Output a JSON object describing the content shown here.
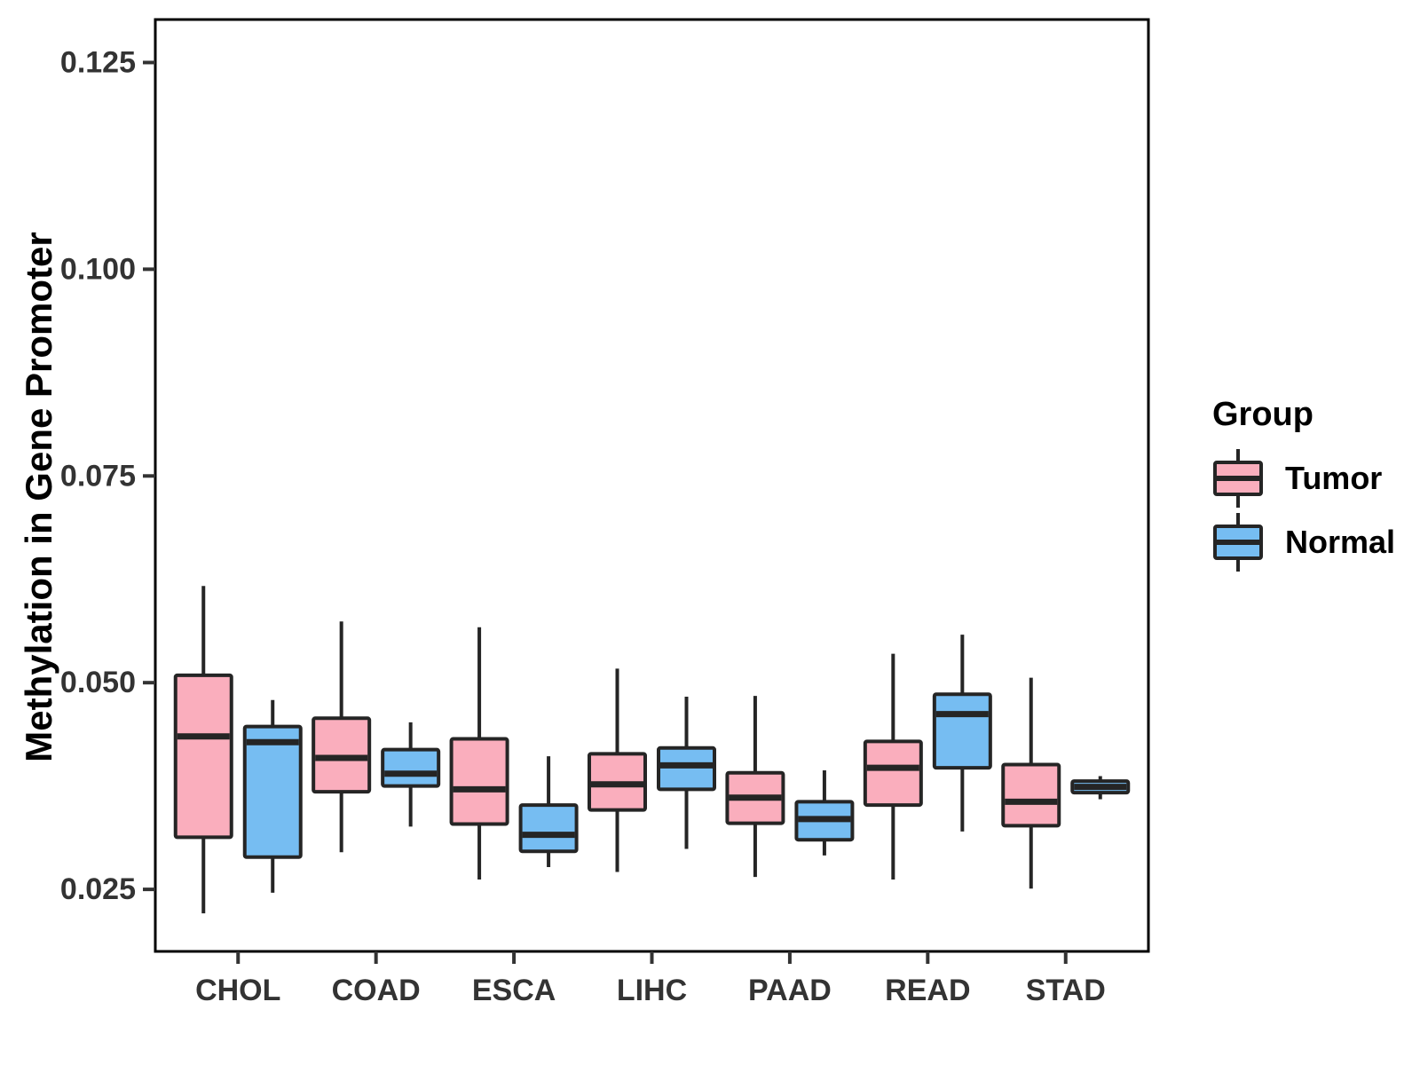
{
  "figure": {
    "y_axis": {
      "title": "Methylation in Gene Promoter",
      "tick_values": [
        0.025,
        0.05,
        0.075,
        0.1,
        0.125
      ],
      "tick_labels": [
        "0.025",
        "0.050",
        "0.075",
        "0.100",
        "0.125"
      ]
    },
    "x_axis": {
      "categories": [
        "CHOL",
        "COAD",
        "ESCA",
        "LIHC",
        "PAAD",
        "READ",
        "STAD"
      ]
    },
    "legend": {
      "title": "Group",
      "entries": [
        {
          "label": "Tumor",
          "color": "#FAAEBD"
        },
        {
          "label": "Normal",
          "color": "#76BDF2"
        }
      ]
    }
  },
  "style": {
    "box_stroke": "#252525",
    "axis_text_color": "#333333",
    "panel_border_color": "#000000",
    "background": "#ffffff"
  },
  "chart_data": {
    "type": "grouped_boxplot",
    "title": "",
    "xlabel": "",
    "ylabel": "Methylation in Gene Promoter",
    "categories": [
      "CHOL",
      "COAD",
      "ESCA",
      "LIHC",
      "PAAD",
      "READ",
      "STAD"
    ],
    "yticks": [
      0.025,
      0.05,
      0.075,
      0.1,
      0.125
    ],
    "ylim": [
      0.0175,
      0.1302
    ],
    "grid": false,
    "legend_position": "right",
    "series": [
      {
        "name": "Tumor",
        "color": "#FAAEBD",
        "boxes": [
          {
            "whisker_low": 0.0221,
            "q1": 0.0313,
            "median": 0.0435,
            "q3": 0.0509,
            "whisker_high": 0.0617
          },
          {
            "whisker_low": 0.0295,
            "q1": 0.0368,
            "median": 0.0409,
            "q3": 0.0457,
            "whisker_high": 0.0574
          },
          {
            "whisker_low": 0.0262,
            "q1": 0.0329,
            "median": 0.0371,
            "q3": 0.0432,
            "whisker_high": 0.0567
          },
          {
            "whisker_low": 0.0271,
            "q1": 0.0346,
            "median": 0.0377,
            "q3": 0.0414,
            "whisker_high": 0.0517
          },
          {
            "whisker_low": 0.0265,
            "q1": 0.033,
            "median": 0.0361,
            "q3": 0.0391,
            "whisker_high": 0.0484
          },
          {
            "whisker_low": 0.0262,
            "q1": 0.0352,
            "median": 0.0397,
            "q3": 0.0429,
            "whisker_high": 0.0535
          },
          {
            "whisker_low": 0.0251,
            "q1": 0.0327,
            "median": 0.0356,
            "q3": 0.0401,
            "whisker_high": 0.0506
          }
        ]
      },
      {
        "name": "Normal",
        "color": "#76BDF2",
        "boxes": [
          {
            "whisker_low": 0.0246,
            "q1": 0.0289,
            "median": 0.0428,
            "q3": 0.0447,
            "whisker_high": 0.0479
          },
          {
            "whisker_low": 0.0326,
            "q1": 0.0375,
            "median": 0.039,
            "q3": 0.0419,
            "whisker_high": 0.0452
          },
          {
            "whisker_low": 0.0277,
            "q1": 0.0296,
            "median": 0.0316,
            "q3": 0.0352,
            "whisker_high": 0.0411
          },
          {
            "whisker_low": 0.0299,
            "q1": 0.0371,
            "median": 0.04,
            "q3": 0.0421,
            "whisker_high": 0.0483
          },
          {
            "whisker_low": 0.0291,
            "q1": 0.031,
            "median": 0.0335,
            "q3": 0.0356,
            "whisker_high": 0.0394
          },
          {
            "whisker_low": 0.032,
            "q1": 0.0397,
            "median": 0.0462,
            "q3": 0.0486,
            "whisker_high": 0.0558
          },
          {
            "whisker_low": 0.0359,
            "q1": 0.0367,
            "median": 0.0374,
            "q3": 0.0381,
            "whisker_high": 0.0387
          }
        ]
      }
    ]
  }
}
